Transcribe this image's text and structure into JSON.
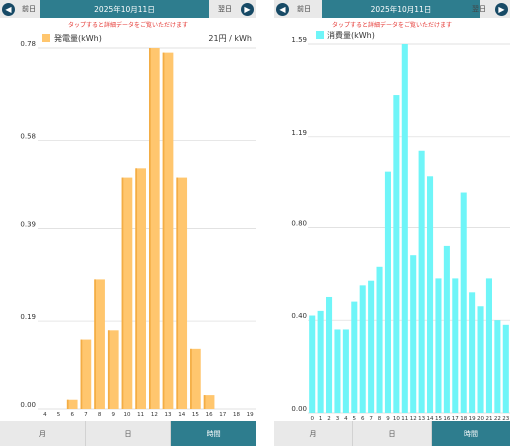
{
  "left": {
    "prev_label": "前日",
    "date": "2025年10月11日",
    "next_label": "翌日",
    "hint": "タップすると詳細データをご覧いただけます",
    "tabs": [
      "月",
      "日",
      "時間"
    ],
    "price": "21円 / kWh",
    "colors": {
      "bar": "#ffc66e",
      "bar_dark": "#f3ad45"
    }
  },
  "right": {
    "prev_label": "前日",
    "date": "2025年10月11日",
    "next_label": "翌日",
    "hint": "タップすると詳細データをご覧いただけます",
    "tabs": [
      "月",
      "日",
      "時間"
    ],
    "colors": {
      "bar": "#6ff5f8"
    }
  },
  "chart_data": [
    {
      "type": "bar",
      "series": [
        {
          "name": "発電量(kWh)",
          "values": [
            0,
            0,
            0.02,
            0.15,
            0.28,
            0.17,
            0.5,
            0.52,
            0.78,
            0.77,
            0.5,
            0.13,
            0.03,
            0,
            0,
            0
          ]
        }
      ],
      "categories": [
        "4",
        "5",
        "6",
        "7",
        "8",
        "9",
        "10",
        "11",
        "12",
        "13",
        "14",
        "15",
        "16",
        "17",
        "18",
        "19"
      ],
      "yticks": [
        "0.00",
        "0.19",
        "0.39",
        "0.58",
        "0.78"
      ],
      "ylim": [
        0,
        0.78
      ],
      "legend": "top-left",
      "grid": true
    },
    {
      "type": "bar",
      "series": [
        {
          "name": "消費量(kWh)",
          "values": [
            0.42,
            0.44,
            0.5,
            0.36,
            0.36,
            0.48,
            0.55,
            0.57,
            0.63,
            1.04,
            1.37,
            1.59,
            0.68,
            1.13,
            1.02,
            0.58,
            0.72,
            0.58,
            0.95,
            0.52,
            0.46,
            0.58,
            0.4,
            0.38
          ]
        }
      ],
      "categories": [
        "0",
        "1",
        "2",
        "3",
        "4",
        "5",
        "6",
        "7",
        "8",
        "9",
        "10",
        "11",
        "12",
        "13",
        "14",
        "15",
        "16",
        "17",
        "18",
        "19",
        "20",
        "21",
        "22",
        "23"
      ],
      "yticks": [
        "0.00",
        "0.40",
        "0.80",
        "1.19",
        "1.59"
      ],
      "ylim": [
        0,
        1.59
      ],
      "legend": "top-left",
      "grid": true
    }
  ]
}
